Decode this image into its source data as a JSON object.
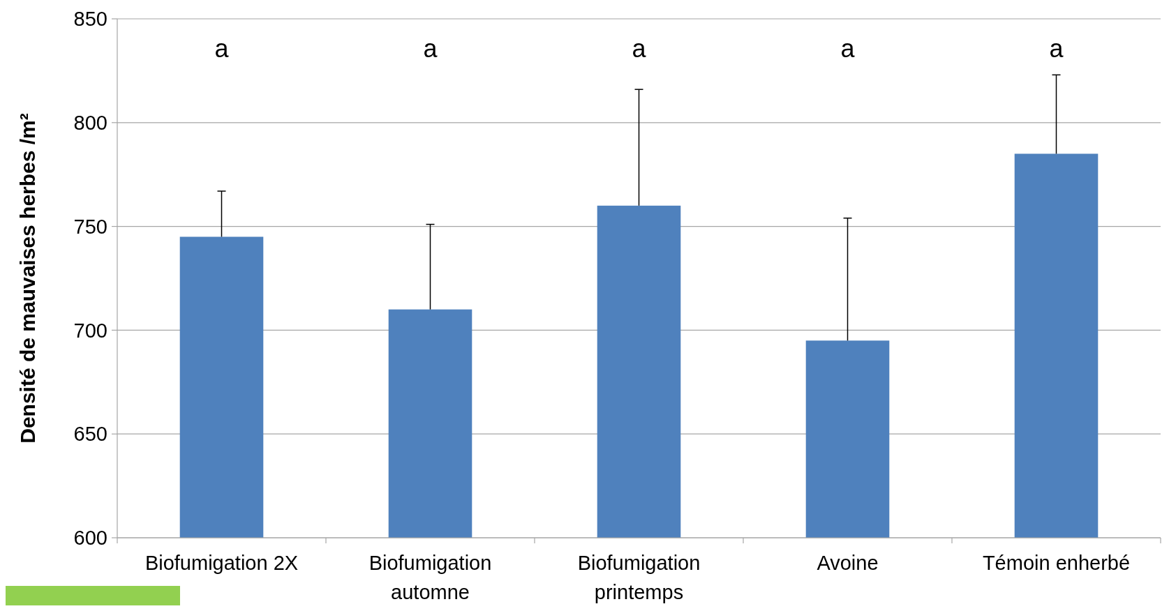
{
  "chart_data": {
    "type": "bar",
    "ylabel": "Densité de mauvaises herbes /m²",
    "categories": [
      "Biofumigation 2X",
      "Biofumigation automne",
      "Biofumigation printemps",
      "Avoine",
      "Témoin enherbé"
    ],
    "values": [
      745,
      710,
      760,
      695,
      785
    ],
    "errors": [
      [
        745,
        767
      ],
      [
        710,
        751
      ],
      [
        760,
        816
      ],
      [
        695,
        754
      ],
      [
        785,
        823
      ]
    ],
    "color": "#4f81bd",
    "ylim": [
      600,
      850
    ],
    "yticks": [
      600,
      650,
      700,
      750,
      800,
      850
    ],
    "grid": "y",
    "annotations": [
      "a",
      "a",
      "a",
      "a",
      "a"
    ]
  }
}
